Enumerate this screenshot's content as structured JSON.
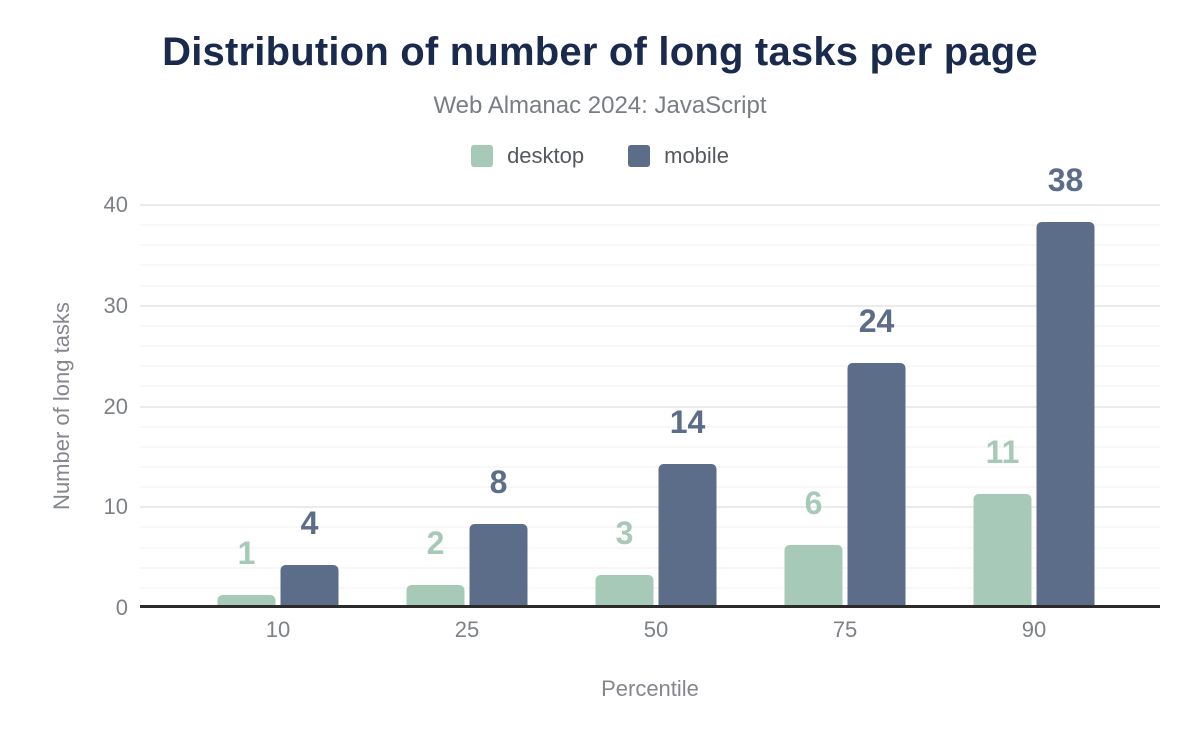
{
  "chart_data": {
    "type": "bar",
    "title": "Distribution of number of long tasks per page",
    "subtitle": "Web Almanac 2024: JavaScript",
    "categories": [
      "10",
      "25",
      "50",
      "75",
      "90"
    ],
    "series": [
      {
        "name": "desktop",
        "color": "#a7c9b8",
        "values": [
          1,
          2,
          3,
          6,
          11
        ]
      },
      {
        "name": "mobile",
        "color": "#5c6d89",
        "values": [
          4,
          8,
          14,
          24,
          38
        ]
      }
    ],
    "xlabel": "Percentile",
    "ylabel": "Number of long tasks",
    "ylim": [
      0,
      40
    ],
    "yticks": [
      0,
      10,
      20,
      30,
      40
    ],
    "minor_tick_step": 2,
    "grid": "on",
    "legend_position": "top",
    "data_labels": "on",
    "colors": {
      "title": "#1a2a4d",
      "subtitle": "#797d84",
      "tick_labels": "#7d8186",
      "axis_titles": "#84878c",
      "legend_text": "#55585e",
      "axis_line": "#2b2b2b",
      "grid_major": "#ebebeb",
      "grid_minor": "#f7f7f7",
      "background": "#ffffff"
    }
  }
}
